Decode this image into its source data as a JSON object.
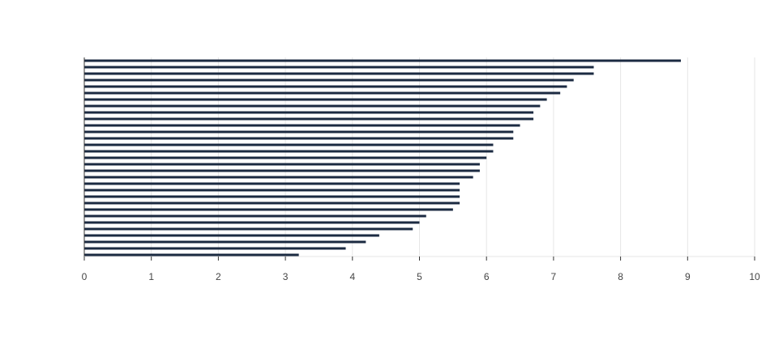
{
  "chart_data": {
    "type": "bar",
    "orientation": "horizontal",
    "title": "",
    "xlabel": "",
    "ylabel": "",
    "xlim": [
      0,
      10
    ],
    "x_ticks": [
      "0",
      "1",
      "2",
      "3",
      "4",
      "5",
      "6",
      "7",
      "8",
      "9",
      "10"
    ],
    "grid": "vertical",
    "legend": "none",
    "bar_color": "#1b2a41",
    "grid_color": "#e6e6e6",
    "axis_color": "#333333",
    "values": [
      8.9,
      7.6,
      7.6,
      7.3,
      7.2,
      7.1,
      6.9,
      6.8,
      6.7,
      6.7,
      6.5,
      6.4,
      6.4,
      6.1,
      6.1,
      6.0,
      5.9,
      5.9,
      5.8,
      5.6,
      5.6,
      5.6,
      5.6,
      5.5,
      5.1,
      5.0,
      4.9,
      4.4,
      4.2,
      3.9,
      3.2
    ]
  }
}
